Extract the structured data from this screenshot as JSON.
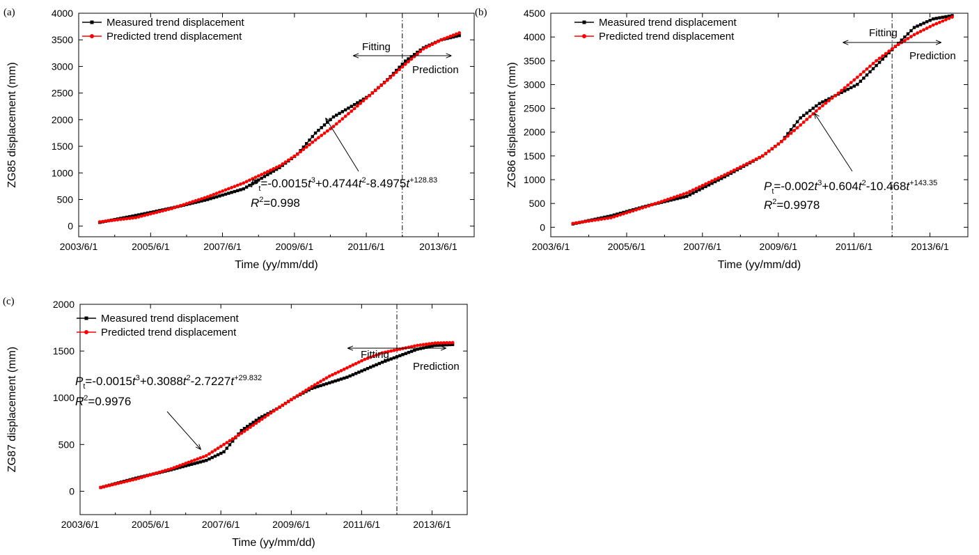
{
  "chart_data": [
    {
      "panel": "(a)",
      "type": "line",
      "xlabel": "Time (yy/mm/dd)",
      "ylabel": "ZG85 displacement (mm)",
      "x_ticks": [
        "2003/6/1",
        "2005/6/1",
        "2007/6/1",
        "2009/6/1",
        "2011/6/1",
        "2013/6/1"
      ],
      "y_ticks": [
        "0",
        "500",
        "1000",
        "1500",
        "2000",
        "2500",
        "3000",
        "3500",
        "4000"
      ],
      "xlim": [
        "2003/6/1",
        "2014/6/1"
      ],
      "ylim": [
        -200,
        4000
      ],
      "split_date": "2012/6/1",
      "fitting_label": "Fitting",
      "prediction_label": "Prediction",
      "equation": {
        "p": "P",
        "sub": "t",
        "body": [
          "=-0.0015",
          "t",
          "3",
          "+0.4744",
          "t",
          "2",
          "-8.4975",
          "t",
          "+128.83"
        ]
      },
      "r2": {
        "r": "R",
        "sup": "2",
        "value": "=0.998"
      },
      "legend_position": "top-left",
      "series": [
        {
          "name": "Measured trend displacement",
          "color": "#000000",
          "marker": "square",
          "points": [
            [
              "2004/1/1",
              70
            ],
            [
              "2005/1/1",
              200
            ],
            [
              "2006/1/1",
              340
            ],
            [
              "2007/1/1",
              500
            ],
            [
              "2008/1/1",
              700
            ],
            [
              "2009/1/1",
              1100
            ],
            [
              "2009/7/1",
              1350
            ],
            [
              "2010/1/1",
              1750
            ],
            [
              "2010/7/1",
              2050
            ],
            [
              "2011/1/1",
              2250
            ],
            [
              "2011/7/1",
              2450
            ],
            [
              "2012/1/1",
              2750
            ],
            [
              "2012/7/1",
              3100
            ],
            [
              "2013/1/1",
              3350
            ],
            [
              "2013/7/1",
              3500
            ],
            [
              "2014/1/1",
              3580
            ]
          ]
        },
        {
          "name": "Predicted trend displacement",
          "color": "#ff0000",
          "marker": "circle",
          "points": [
            [
              "2004/1/1",
              80
            ],
            [
              "2005/1/1",
              160
            ],
            [
              "2006/1/1",
              330
            ],
            [
              "2007/1/1",
              550
            ],
            [
              "2008/1/1",
              810
            ],
            [
              "2009/1/1",
              1130
            ],
            [
              "2009/7/1",
              1350
            ],
            [
              "2010/1/1",
              1620
            ],
            [
              "2010/7/1",
              1870
            ],
            [
              "2011/1/1",
              2160
            ],
            [
              "2011/7/1",
              2450
            ],
            [
              "2012/1/1",
              2740
            ],
            [
              "2012/7/1",
              3040
            ],
            [
              "2013/1/1",
              3330
            ],
            [
              "2013/7/1",
              3500
            ],
            [
              "2014/1/1",
              3630
            ]
          ]
        }
      ]
    },
    {
      "panel": "(b)",
      "type": "line",
      "xlabel": "Time (yy/mm/dd)",
      "ylabel": "ZG86 displacement (mm)",
      "x_ticks": [
        "2003/6/1",
        "2005/6/1",
        "2007/6/1",
        "2009/6/1",
        "2011/6/1",
        "2013/6/1"
      ],
      "y_ticks": [
        "0",
        "500",
        "1000",
        "1500",
        "2000",
        "2500",
        "3000",
        "3500",
        "4000",
        "4500"
      ],
      "xlim": [
        "2003/6/1",
        "2014/6/1"
      ],
      "ylim": [
        -200,
        4500
      ],
      "split_date": "2012/6/1",
      "fitting_label": "Fitting",
      "prediction_label": "Prediction",
      "equation": {
        "p": "P",
        "sub": "t",
        "body": [
          "=-0.002",
          "t",
          "3",
          "+0.604",
          "t",
          "2",
          "-10.468",
          "t",
          "+143.35"
        ]
      },
      "r2": {
        "r": "R",
        "sup": "2",
        "value": "=0.9978"
      },
      "legend_position": "top-left",
      "series": [
        {
          "name": "Measured trend displacement",
          "color": "#000000",
          "marker": "square",
          "points": [
            [
              "2004/1/1",
              70
            ],
            [
              "2005/1/1",
              240
            ],
            [
              "2006/1/1",
              460
            ],
            [
              "2007/1/1",
              650
            ],
            [
              "2008/1/1",
              1060
            ],
            [
              "2009/1/1",
              1500
            ],
            [
              "2009/7/1",
              1800
            ],
            [
              "2010/1/1",
              2300
            ],
            [
              "2010/7/1",
              2600
            ],
            [
              "2011/1/1",
              2800
            ],
            [
              "2011/7/1",
              3000
            ],
            [
              "2012/1/1",
              3400
            ],
            [
              "2012/7/1",
              3800
            ],
            [
              "2013/1/1",
              4200
            ],
            [
              "2013/7/1",
              4380
            ],
            [
              "2014/1/1",
              4450
            ]
          ]
        },
        {
          "name": "Predicted trend displacement",
          "color": "#ff0000",
          "marker": "circle",
          "points": [
            [
              "2004/1/1",
              80
            ],
            [
              "2005/1/1",
              200
            ],
            [
              "2006/1/1",
              450
            ],
            [
              "2007/1/1",
              720
            ],
            [
              "2008/1/1",
              1100
            ],
            [
              "2009/1/1",
              1500
            ],
            [
              "2009/7/1",
              1800
            ],
            [
              "2010/1/1",
              2150
            ],
            [
              "2010/7/1",
              2500
            ],
            [
              "2011/1/1",
              2820
            ],
            [
              "2011/7/1",
              3150
            ],
            [
              "2012/1/1",
              3500
            ],
            [
              "2012/7/1",
              3800
            ],
            [
              "2013/1/1",
              4050
            ],
            [
              "2013/7/1",
              4250
            ],
            [
              "2014/1/1",
              4420
            ]
          ]
        }
      ]
    },
    {
      "panel": "(c)",
      "type": "line",
      "xlabel": "Time (yy/mm/dd)",
      "ylabel": "ZG87 displacement (mm)",
      "x_ticks": [
        "2003/6/1",
        "2005/6/1",
        "2007/6/1",
        "2009/6/1",
        "2011/6/1",
        "2013/6/1"
      ],
      "y_ticks": [
        "0",
        "500",
        "1000",
        "1500",
        "2000"
      ],
      "xlim": [
        "2003/6/1",
        "2014/6/1"
      ],
      "ylim": [
        -250,
        2000
      ],
      "split_date": "2012/6/1",
      "fitting_label": "Fitting",
      "prediction_label": "Prediction",
      "equation": {
        "p": "P",
        "sub": "t",
        "body": [
          "=-0.0015",
          "t",
          "3",
          "+0.3088",
          "t",
          "2",
          "-2.7227",
          "t",
          "+29.832"
        ]
      },
      "r2": {
        "r": "R",
        "sup": "2",
        "value": "=0.9976"
      },
      "legend_position": "top-left",
      "series": [
        {
          "name": "Measured trend displacement",
          "color": "#000000",
          "marker": "square",
          "points": [
            [
              "2004/1/1",
              40
            ],
            [
              "2005/1/1",
              140
            ],
            [
              "2006/1/1",
              230
            ],
            [
              "2007/1/1",
              330
            ],
            [
              "2007/7/1",
              420
            ],
            [
              "2008/1/1",
              650
            ],
            [
              "2008/7/1",
              780
            ],
            [
              "2009/1/1",
              880
            ],
            [
              "2009/7/1",
              1000
            ],
            [
              "2010/1/1",
              1100
            ],
            [
              "2011/1/1",
              1220
            ],
            [
              "2012/1/1",
              1380
            ],
            [
              "2012/7/1",
              1450
            ],
            [
              "2013/1/1",
              1520
            ],
            [
              "2013/7/1",
              1560
            ],
            [
              "2014/1/1",
              1570
            ]
          ]
        },
        {
          "name": "Predicted trend displacement",
          "color": "#ff0000",
          "marker": "circle",
          "points": [
            [
              "2004/1/1",
              40
            ],
            [
              "2005/1/1",
              130
            ],
            [
              "2006/1/1",
              240
            ],
            [
              "2007/1/1",
              380
            ],
            [
              "2008/1/1",
              620
            ],
            [
              "2009/1/1",
              880
            ],
            [
              "2010/1/1",
              1120
            ],
            [
              "2010/7/1",
              1230
            ],
            [
              "2011/1/1",
              1320
            ],
            [
              "2011/7/1",
              1410
            ],
            [
              "2012/1/1",
              1480
            ],
            [
              "2012/7/1",
              1520
            ],
            [
              "2013/1/1",
              1560
            ],
            [
              "2013/7/1",
              1585
            ],
            [
              "2014/1/1",
              1590
            ]
          ]
        }
      ]
    }
  ]
}
